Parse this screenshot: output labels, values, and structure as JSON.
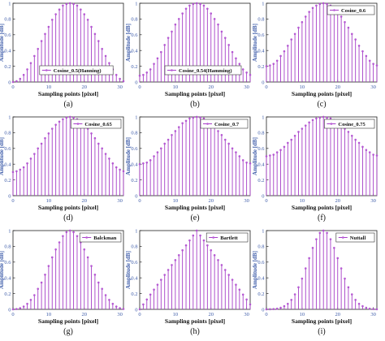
{
  "chart_data": [
    {
      "type": "stem",
      "caption": "(a)",
      "legend": "Cosine_0.5(Hanning)",
      "xlabel": "Sampling points [pixel]",
      "ylabel": "Amplitude [dB]",
      "xlim": [
        0,
        31
      ],
      "ylim": [
        0,
        1
      ],
      "xticks": [
        0,
        10,
        20,
        30
      ],
      "yticks": [
        0,
        0.2,
        0.4,
        0.6,
        0.8,
        1
      ],
      "ytick_labels": [
        "0",
        "0.2",
        "0.4",
        "0.6",
        "0.8",
        "1"
      ],
      "x": [
        0,
        1,
        2,
        3,
        4,
        5,
        6,
        7,
        8,
        9,
        10,
        11,
        12,
        13,
        14,
        15,
        16,
        17,
        18,
        19,
        20,
        21,
        22,
        23,
        24,
        25,
        26,
        27,
        28,
        29,
        30,
        31
      ],
      "values": [
        0.0,
        0.01,
        0.04,
        0.09,
        0.16,
        0.24,
        0.33,
        0.42,
        0.52,
        0.61,
        0.7,
        0.79,
        0.86,
        0.92,
        0.97,
        0.99,
        1.0,
        0.99,
        0.97,
        0.92,
        0.86,
        0.79,
        0.7,
        0.61,
        0.52,
        0.42,
        0.33,
        0.24,
        0.16,
        0.09,
        0.04,
        0.01
      ],
      "legend_position": "bottom-center"
    },
    {
      "type": "stem",
      "caption": "(b)",
      "legend": "Cosine_0.54(Hamming)",
      "xlabel": "Sampling points [pixel]",
      "ylabel": "Amplitude [dB]",
      "xlim": [
        0,
        31
      ],
      "ylim": [
        0,
        1
      ],
      "xticks": [
        0,
        10,
        20,
        30
      ],
      "yticks": [
        0,
        0.2,
        0.4,
        0.6,
        0.8,
        1
      ],
      "ytick_labels": [
        "0",
        "0.2",
        "0.4",
        "0.6",
        "0.8",
        "1"
      ],
      "x": [
        0,
        1,
        2,
        3,
        4,
        5,
        6,
        7,
        8,
        9,
        10,
        11,
        12,
        13,
        14,
        15,
        16,
        17,
        18,
        19,
        20,
        21,
        22,
        23,
        24,
        25,
        26,
        27,
        28,
        29,
        30,
        31
      ],
      "values": [
        0.08,
        0.09,
        0.12,
        0.16,
        0.23,
        0.3,
        0.38,
        0.47,
        0.56,
        0.64,
        0.73,
        0.8,
        0.87,
        0.93,
        0.97,
        0.99,
        1.0,
        0.99,
        0.97,
        0.93,
        0.87,
        0.8,
        0.73,
        0.64,
        0.56,
        0.47,
        0.38,
        0.3,
        0.23,
        0.16,
        0.12,
        0.09
      ],
      "legend_position": "bottom-center"
    },
    {
      "type": "stem",
      "caption": "(c)",
      "legend": "Cosine_0.6",
      "xlabel": "Sampling points [pixel]",
      "ylabel": "Amplitude [dB]",
      "xlim": [
        0,
        31
      ],
      "ylim": [
        0,
        1
      ],
      "xticks": [
        0,
        10,
        20,
        30
      ],
      "yticks": [
        0,
        0.2,
        0.4,
        0.6,
        0.8,
        1
      ],
      "ytick_labels": [
        "0",
        "0.2",
        "0.4",
        "0.6",
        "0.8",
        "1"
      ],
      "x": [
        0,
        1,
        2,
        3,
        4,
        5,
        6,
        7,
        8,
        9,
        10,
        11,
        12,
        13,
        14,
        15,
        16,
        17,
        18,
        19,
        20,
        21,
        22,
        23,
        24,
        25,
        26,
        27,
        28,
        29,
        30,
        31
      ],
      "values": [
        0.2,
        0.21,
        0.23,
        0.27,
        0.33,
        0.39,
        0.46,
        0.54,
        0.61,
        0.69,
        0.76,
        0.83,
        0.89,
        0.94,
        0.97,
        0.99,
        1.0,
        0.99,
        0.97,
        0.94,
        0.89,
        0.83,
        0.76,
        0.69,
        0.61,
        0.54,
        0.46,
        0.39,
        0.33,
        0.27,
        0.23,
        0.21
      ],
      "legend_position": "top-right"
    },
    {
      "type": "stem",
      "caption": "(d)",
      "legend": "Cosine_0.65",
      "xlabel": "Sampling points [pixel]",
      "ylabel": "Amplitude [dB]",
      "xlim": [
        0,
        31
      ],
      "ylim": [
        0,
        1
      ],
      "xticks": [
        0,
        10,
        20,
        30
      ],
      "yticks": [
        0,
        0.2,
        0.4,
        0.6,
        0.8,
        1
      ],
      "ytick_labels": [
        "0",
        "0.2",
        "0.4",
        "0.6",
        "0.8",
        "1"
      ],
      "x": [
        0,
        1,
        2,
        3,
        4,
        5,
        6,
        7,
        8,
        9,
        10,
        11,
        12,
        13,
        14,
        15,
        16,
        17,
        18,
        19,
        20,
        21,
        22,
        23,
        24,
        25,
        26,
        27,
        28,
        29,
        30,
        31
      ],
      "values": [
        0.3,
        0.31,
        0.33,
        0.36,
        0.41,
        0.47,
        0.53,
        0.6,
        0.66,
        0.73,
        0.79,
        0.85,
        0.9,
        0.94,
        0.97,
        0.99,
        1.0,
        0.99,
        0.97,
        0.94,
        0.9,
        0.85,
        0.79,
        0.73,
        0.66,
        0.6,
        0.53,
        0.47,
        0.41,
        0.36,
        0.33,
        0.31
      ],
      "legend_position": "top-right"
    },
    {
      "type": "stem",
      "caption": "(e)",
      "legend": "Cosine_0.7",
      "xlabel": "Sampling points [pixel]",
      "ylabel": "Amplitude [dB]",
      "xlim": [
        0,
        31
      ],
      "ylim": [
        0,
        1
      ],
      "xticks": [
        0,
        10,
        20,
        30
      ],
      "yticks": [
        0,
        0.2,
        0.4,
        0.6,
        0.8,
        1
      ],
      "ytick_labels": [
        "0",
        "0.2",
        "0.4",
        "0.6",
        "0.8",
        "1"
      ],
      "x": [
        0,
        1,
        2,
        3,
        4,
        5,
        6,
        7,
        8,
        9,
        10,
        11,
        12,
        13,
        14,
        15,
        16,
        17,
        18,
        19,
        20,
        21,
        22,
        23,
        24,
        25,
        26,
        27,
        28,
        29,
        30,
        31
      ],
      "values": [
        0.4,
        0.41,
        0.42,
        0.45,
        0.5,
        0.55,
        0.6,
        0.66,
        0.71,
        0.77,
        0.82,
        0.87,
        0.92,
        0.95,
        0.98,
        0.99,
        1.0,
        0.99,
        0.98,
        0.95,
        0.92,
        0.87,
        0.82,
        0.77,
        0.71,
        0.66,
        0.6,
        0.55,
        0.5,
        0.45,
        0.42,
        0.41
      ],
      "legend_position": "top-right"
    },
    {
      "type": "stem",
      "caption": "(f)",
      "legend": "Cosine_0.75",
      "xlabel": "Sampling points [pixel]",
      "ylabel": "Amplitude [dB]",
      "xlim": [
        0,
        31
      ],
      "ylim": [
        0,
        1
      ],
      "xticks": [
        0,
        10,
        20,
        30
      ],
      "yticks": [
        0,
        0.2,
        0.4,
        0.6,
        0.8,
        1
      ],
      "ytick_labels": [
        "0",
        "0.2",
        "0.4",
        "0.6",
        "0.8",
        "1"
      ],
      "x": [
        0,
        1,
        2,
        3,
        4,
        5,
        6,
        7,
        8,
        9,
        10,
        11,
        12,
        13,
        14,
        15,
        16,
        17,
        18,
        19,
        20,
        21,
        22,
        23,
        24,
        25,
        26,
        27,
        28,
        29,
        30,
        31
      ],
      "values": [
        0.5,
        0.51,
        0.52,
        0.55,
        0.58,
        0.62,
        0.67,
        0.71,
        0.76,
        0.81,
        0.85,
        0.89,
        0.93,
        0.96,
        0.98,
        0.99,
        1.0,
        0.99,
        0.98,
        0.96,
        0.93,
        0.89,
        0.85,
        0.81,
        0.76,
        0.71,
        0.67,
        0.62,
        0.58,
        0.55,
        0.52,
        0.51
      ],
      "legend_position": "top-right"
    },
    {
      "type": "stem",
      "caption": "(g)",
      "legend": "Balckman",
      "xlabel": "Sampling points [pixel]",
      "ylabel": "Amplitude [dB]",
      "xlim": [
        0,
        31
      ],
      "ylim": [
        0,
        1
      ],
      "xticks": [
        0,
        10,
        20,
        30
      ],
      "yticks": [
        0,
        0.2,
        0.4,
        0.6,
        0.8,
        1
      ],
      "ytick_labels": [
        "0",
        "0.2",
        "0.4",
        "0.6",
        "0.8",
        "1"
      ],
      "x": [
        0,
        1,
        2,
        3,
        4,
        5,
        6,
        7,
        8,
        9,
        10,
        11,
        12,
        13,
        14,
        15,
        16,
        17,
        18,
        19,
        20,
        21,
        22,
        23,
        24,
        25,
        26,
        27,
        28,
        29,
        30,
        31
      ],
      "values": [
        0.0,
        0.004,
        0.015,
        0.035,
        0.07,
        0.12,
        0.18,
        0.26,
        0.34,
        0.44,
        0.55,
        0.66,
        0.76,
        0.85,
        0.93,
        0.98,
        1.0,
        0.98,
        0.93,
        0.85,
        0.76,
        0.66,
        0.55,
        0.44,
        0.34,
        0.26,
        0.18,
        0.12,
        0.07,
        0.035,
        0.015,
        0.004
      ],
      "legend_position": "top-right"
    },
    {
      "type": "stem",
      "caption": "(h)",
      "legend": "Bartlett",
      "xlabel": "Sampling points [pixel]",
      "ylabel": "Amplitude [dB]",
      "xlim": [
        0,
        31
      ],
      "ylim": [
        0,
        1
      ],
      "xticks": [
        0,
        10,
        20,
        30
      ],
      "yticks": [
        0,
        0.2,
        0.4,
        0.6,
        0.8,
        1
      ],
      "ytick_labels": [
        "0",
        "0.2",
        "0.4",
        "0.6",
        "0.8",
        "1"
      ],
      "x": [
        0,
        1,
        2,
        3,
        4,
        5,
        6,
        7,
        8,
        9,
        10,
        11,
        12,
        13,
        14,
        15,
        16,
        17,
        18,
        19,
        20,
        21,
        22,
        23,
        24,
        25,
        26,
        27,
        28,
        29,
        30,
        31
      ],
      "values": [
        0.0,
        0.0625,
        0.125,
        0.1875,
        0.25,
        0.3125,
        0.375,
        0.4375,
        0.5,
        0.5625,
        0.625,
        0.6875,
        0.75,
        0.8125,
        0.875,
        0.9375,
        1.0,
        0.9375,
        0.875,
        0.8125,
        0.75,
        0.6875,
        0.625,
        0.5625,
        0.5,
        0.4375,
        0.375,
        0.3125,
        0.25,
        0.1875,
        0.125,
        0.0625
      ],
      "legend_position": "top-right"
    },
    {
      "type": "stem",
      "caption": "(i)",
      "legend": "Nuttall",
      "xlabel": "Sampling points [pixel]",
      "ylabel": "Amplitude [dB]",
      "xlim": [
        0,
        31
      ],
      "ylim": [
        0,
        1
      ],
      "xticks": [
        0,
        10,
        20,
        30
      ],
      "yticks": [
        0,
        0.2,
        0.4,
        0.6,
        0.8,
        1
      ],
      "ytick_labels": [
        "0",
        "0.2",
        "0.4",
        "0.6",
        "0.8",
        "1"
      ],
      "x": [
        0,
        1,
        2,
        3,
        4,
        5,
        6,
        7,
        8,
        9,
        10,
        11,
        12,
        13,
        14,
        15,
        16,
        17,
        18,
        19,
        20,
        21,
        22,
        23,
        24,
        25,
        26,
        27,
        28,
        29,
        30,
        31
      ],
      "values": [
        0.0,
        0.001,
        0.003,
        0.008,
        0.02,
        0.04,
        0.07,
        0.12,
        0.19,
        0.28,
        0.39,
        0.52,
        0.65,
        0.78,
        0.89,
        0.97,
        1.0,
        0.97,
        0.89,
        0.78,
        0.65,
        0.52,
        0.39,
        0.28,
        0.19,
        0.12,
        0.07,
        0.04,
        0.02,
        0.008,
        0.003,
        0.001
      ],
      "legend_position": "top-right"
    }
  ],
  "style": {
    "stem_color": "#a63ec7",
    "marker_color": "#b85cd6",
    "axis_color": "#222222",
    "tick_label_color": "#3b5aa8",
    "ylabel_color": "#3b5aa8"
  }
}
